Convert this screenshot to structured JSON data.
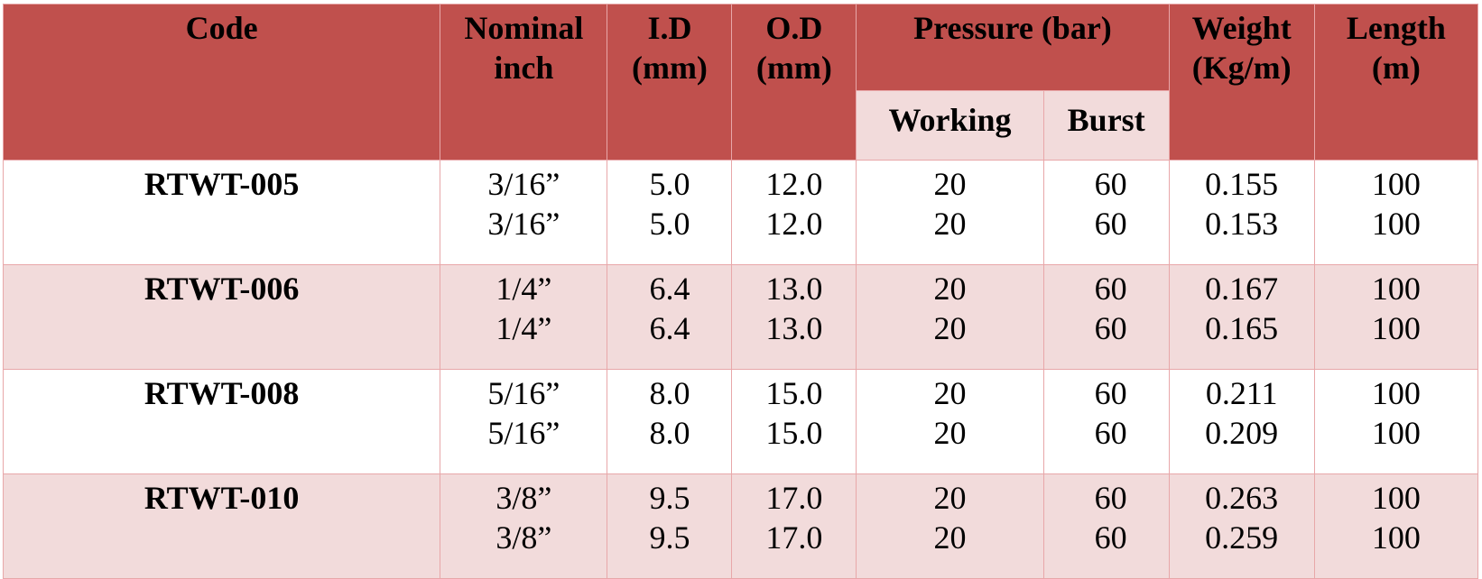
{
  "headers": {
    "code": "Code",
    "nominal_line1": "Nominal",
    "nominal_line2": "inch",
    "id_line1": "I.D",
    "id_line2": "(mm)",
    "od_line1": "O.D",
    "od_line2": "(mm)",
    "pressure": "Pressure (bar)",
    "working": "Working",
    "burst": "Burst",
    "weight_line1": "Weight",
    "weight_line2": "(Kg/m)",
    "length_line1": "Length",
    "length_line2": "(m)"
  },
  "rows": [
    {
      "code": "RTWT-005",
      "nominal": [
        "3/16”",
        "3/16”"
      ],
      "id": [
        "5.0",
        "5.0"
      ],
      "od": [
        "12.0",
        "12.0"
      ],
      "working": [
        "20",
        "20"
      ],
      "burst": [
        "60",
        "60"
      ],
      "weight": [
        "0.155",
        "0.153"
      ],
      "length": [
        "100",
        "100"
      ]
    },
    {
      "code": "RTWT-006",
      "nominal": [
        "1/4”",
        "1/4”"
      ],
      "id": [
        "6.4",
        "6.4"
      ],
      "od": [
        "13.0",
        "13.0"
      ],
      "working": [
        "20",
        "20"
      ],
      "burst": [
        "60",
        "60"
      ],
      "weight": [
        "0.167",
        "0.165"
      ],
      "length": [
        "100",
        "100"
      ]
    },
    {
      "code": "RTWT-008",
      "nominal": [
        "5/16”",
        "5/16”"
      ],
      "id": [
        "8.0",
        "8.0"
      ],
      "od": [
        "15.0",
        "15.0"
      ],
      "working": [
        "20",
        "20"
      ],
      "burst": [
        "60",
        "60"
      ],
      "weight": [
        "0.211",
        "0.209"
      ],
      "length": [
        "100",
        "100"
      ]
    },
    {
      "code": "RTWT-010",
      "nominal": [
        "3/8”",
        "3/8”"
      ],
      "id": [
        "9.5",
        "9.5"
      ],
      "od": [
        "17.0",
        "17.0"
      ],
      "working": [
        "20",
        "20"
      ],
      "burst": [
        "60",
        "60"
      ],
      "weight": [
        "0.263",
        "0.259"
      ],
      "length": [
        "100",
        "100"
      ]
    }
  ],
  "colors": {
    "header_bg": "#c0504d",
    "band_bg": "#f2dbdb",
    "border": "#e8a7a9"
  }
}
